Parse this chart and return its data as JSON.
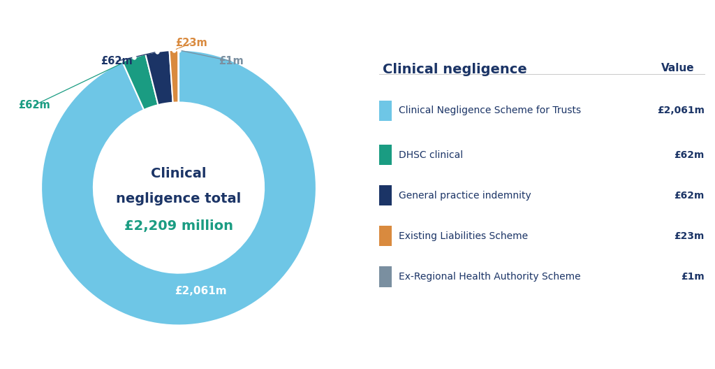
{
  "title": "Clinical negligence",
  "value_header": "Value",
  "center_text_line1": "Clinical",
  "center_text_line2": "negligence total",
  "center_text_line3": "£2,209 million",
  "segments": [
    {
      "label": "Clinical Negligence Scheme for Trusts",
      "value": 2061,
      "display": "£2,061m",
      "color": "#6EC6E6"
    },
    {
      "label": "DHSC clinical",
      "value": 62,
      "display": "£62m",
      "color": "#1A9C82"
    },
    {
      "label": "General practice indemnity",
      "value": 62,
      "display": "£62m",
      "color": "#1B3466"
    },
    {
      "label": "Existing Liabilities Scheme",
      "value": 23,
      "display": "£23m",
      "color": "#D98A3E"
    },
    {
      "label": "Ex-Regional Health Authority Scheme",
      "value": 1,
      "display": "£1m",
      "color": "#7A8FA0"
    }
  ],
  "legend_values": [
    "£2,061m",
    "£62m",
    "£62m",
    "£23m",
    "£1m"
  ],
  "background_color": "#ffffff",
  "text_color_dark": "#1B3466",
  "text_color_teal": "#1A9C82",
  "text_color_orange": "#D98A3E",
  "text_color_gray": "#7A8FA0",
  "label_0_text": "£2,061m",
  "label_1_text": "£62m",
  "label_2_text": "£62m",
  "label_3_text": "£23m",
  "label_4_text": "£1m",
  "donut_width": 0.38
}
